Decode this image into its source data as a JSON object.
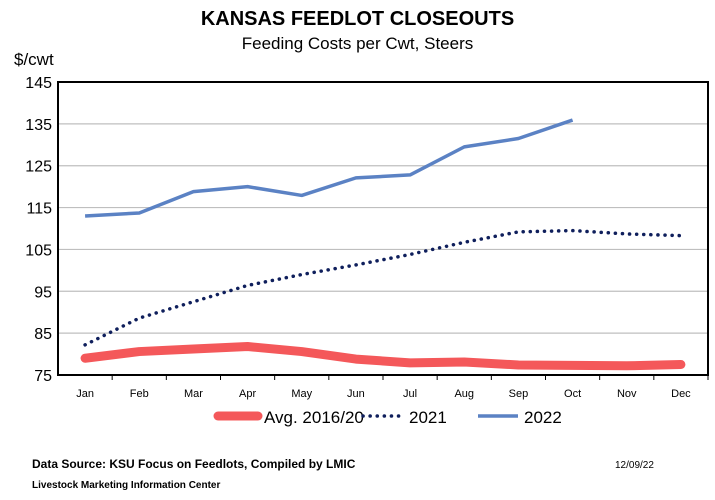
{
  "chart_data": {
    "type": "line",
    "title": "KANSAS FEEDLOT CLOSEOUTS",
    "subtitle": "Feeding Costs per Cwt, Steers",
    "ylabel": "$/cwt",
    "ylim": [
      75,
      145
    ],
    "yticks": [
      "75",
      "85",
      "95",
      "105",
      "115",
      "125",
      "135",
      "145"
    ],
    "grid": true,
    "legend": "bottom",
    "categories": [
      "Jan",
      "Feb",
      "Mar",
      "Apr",
      "May",
      "Jun",
      "Jul",
      "Aug",
      "Sep",
      "Oct",
      "Nov",
      "Dec"
    ],
    "series": [
      {
        "name": "Avg. 2016/20",
        "color": "#f4585a",
        "style": "thick",
        "values": [
          79.0,
          80.6,
          81.2,
          81.8,
          80.6,
          78.8,
          77.9,
          78.1,
          77.4,
          77.3,
          77.2,
          77.5
        ]
      },
      {
        "name": "2021",
        "color": "#0f1f5c",
        "style": "dotted",
        "values": [
          82.2,
          88.6,
          92.5,
          96.4,
          99.0,
          101.3,
          103.8,
          106.7,
          109.2,
          109.5,
          108.7,
          108.3
        ]
      },
      {
        "name": "2022",
        "color": "#5b82c4",
        "style": "solid",
        "values": [
          113.0,
          113.7,
          118.8,
          120.0,
          117.9,
          122.1,
          122.8,
          129.5,
          131.5,
          135.9,
          null,
          null
        ]
      }
    ]
  },
  "footer": {
    "source": "Data Source:  KSU Focus on Feedlots, Compiled by LMIC",
    "org": "Livestock Marketing Information Center",
    "date": "12/09/22"
  }
}
